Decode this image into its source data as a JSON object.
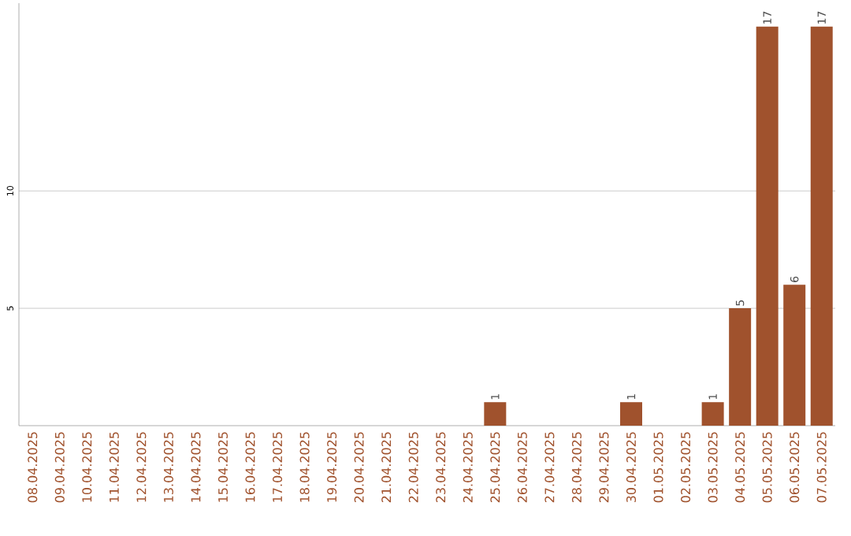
{
  "chart_data": {
    "type": "bar",
    "categories": [
      "08.04.2025",
      "09.04.2025",
      "10.04.2025",
      "11.04.2025",
      "12.04.2025",
      "13.04.2025",
      "14.04.2025",
      "15.04.2025",
      "16.04.2025",
      "17.04.2025",
      "18.04.2025",
      "19.04.2025",
      "20.04.2025",
      "21.04.2025",
      "22.04.2025",
      "23.04.2025",
      "24.04.2025",
      "25.04.2025",
      "26.04.2025",
      "27.04.2025",
      "28.04.2025",
      "29.04.2025",
      "30.04.2025",
      "01.05.2025",
      "02.05.2025",
      "03.05.2025",
      "04.05.2025",
      "05.05.2025",
      "06.05.2025",
      "07.05.2025"
    ],
    "values": [
      0,
      0,
      0,
      0,
      0,
      0,
      0,
      0,
      0,
      0,
      0,
      0,
      0,
      0,
      0,
      0,
      0,
      1,
      0,
      0,
      0,
      0,
      1,
      0,
      0,
      1,
      5,
      17,
      6,
      17
    ],
    "value_labels": [
      null,
      null,
      null,
      null,
      null,
      null,
      null,
      null,
      null,
      null,
      null,
      null,
      null,
      null,
      null,
      null,
      null,
      "1",
      null,
      null,
      null,
      null,
      "1",
      null,
      null,
      "1",
      "5",
      "17",
      "6",
      "17"
    ],
    "color": "#a0522d",
    "ylim": [
      0,
      18
    ],
    "yticks": [
      5,
      10
    ],
    "grid": "y"
  }
}
